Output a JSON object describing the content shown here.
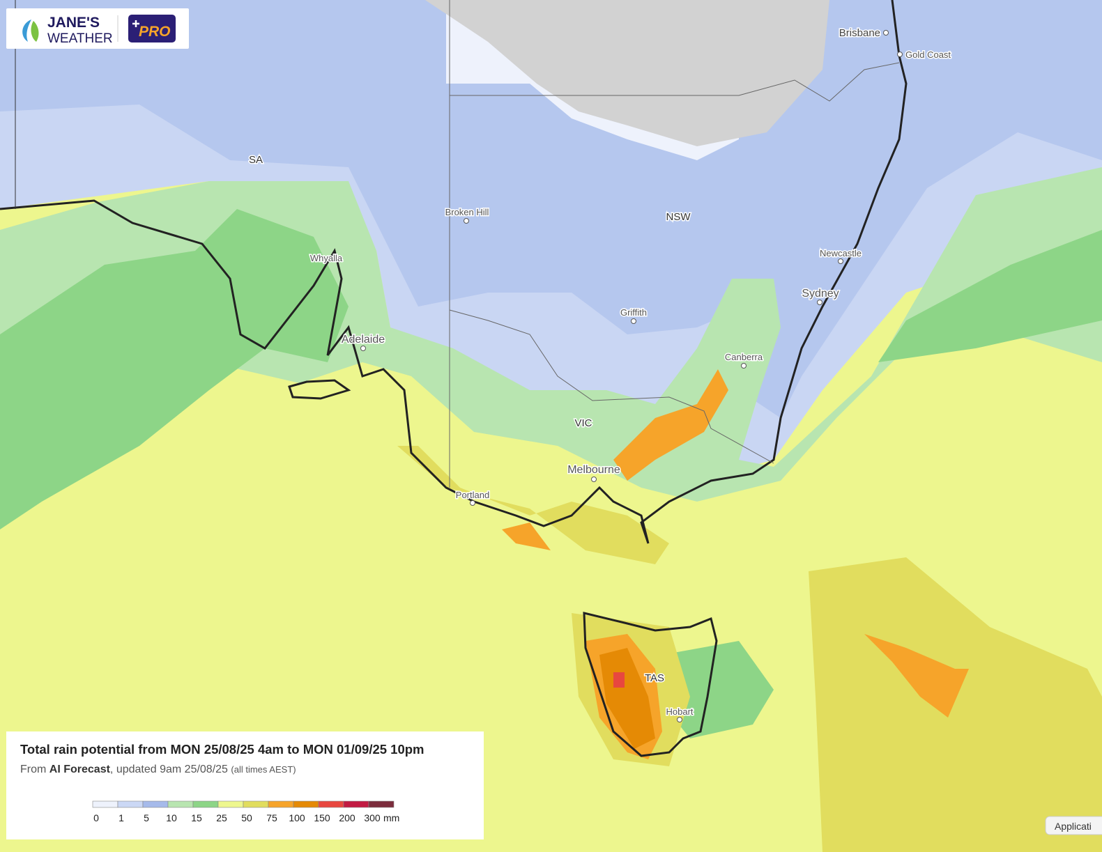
{
  "header": {
    "brand_top": "JANE'S",
    "brand_bottom": "WEATHER",
    "badge": "PRO"
  },
  "places": [
    {
      "name": "Brisbane"
    },
    {
      "name": "Gold Coast"
    },
    {
      "name": "SA"
    },
    {
      "name": "NSW"
    },
    {
      "name": "Broken Hill"
    },
    {
      "name": "Whyalla"
    },
    {
      "name": "Newcastle"
    },
    {
      "name": "Sydney"
    },
    {
      "name": "Griffith"
    },
    {
      "name": "Adelaide"
    },
    {
      "name": "Canberra"
    },
    {
      "name": "VIC"
    },
    {
      "name": "Melbourne"
    },
    {
      "name": "Portland"
    },
    {
      "name": "TAS"
    },
    {
      "name": "Hobart"
    }
  ],
  "legend": {
    "title": "Total rain potential from MON 25/08/25 4am to MON 01/09/25 10pm",
    "subtitle": {
      "prefix": "From",
      "source": "AI Forecast",
      "updated": ", updated 9am 25/08/25",
      "note": "(all times AEST)"
    },
    "values": [
      0,
      1,
      5,
      10,
      15,
      25,
      50,
      75,
      100,
      150,
      200,
      300
    ],
    "colors": [
      "#eef2fc",
      "#cbd8f5",
      "#a6baea",
      "#b8e5b0",
      "#8dd587",
      "#eef78f",
      "#e1dd5e",
      "#f6a42a",
      "#e58a05",
      "#e8473f",
      "#c21a42",
      "#7b2c3c"
    ],
    "unit": "mm"
  },
  "button": "Applicati"
}
